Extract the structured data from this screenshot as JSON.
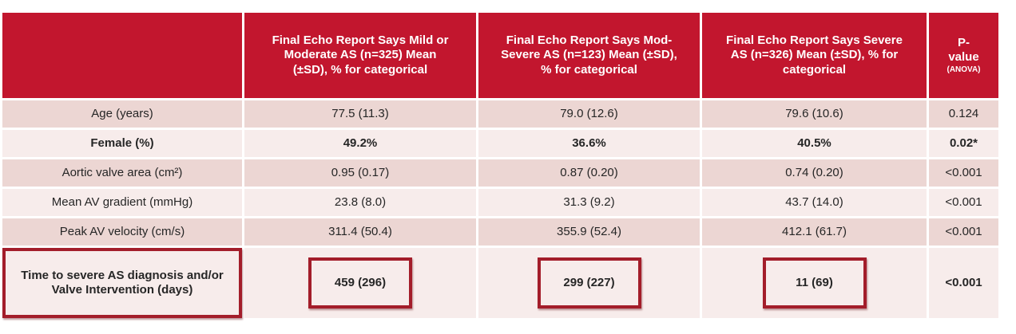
{
  "colors": {
    "header_red": "#c2162e",
    "row_pink": "#ecd6d3",
    "row_light": "#f7eceb",
    "box_red": "#a31d2a",
    "text_dark": "#262626",
    "header_text": "#ffffff",
    "page_bg": "#ffffff"
  },
  "table": {
    "header": {
      "corner": "",
      "groups": [
        "Final Echo Report Says Mild or Moderate AS (n=325) Mean (±SD), % for categorical",
        "Final Echo Report Says Mod-Severe AS (n=123) Mean (±SD), % for categorical",
        "Final Echo Report Says Severe AS (n=326) Mean (±SD), % for categorical"
      ],
      "p_value": "P-value",
      "p_value_sub": "(ANOVA)"
    },
    "rows": [
      {
        "label": "Age (years)",
        "values": [
          "77.5 (11.3)",
          "79.0 (12.6)",
          "79.6 (10.6)"
        ],
        "p": "0.124"
      },
      {
        "label": "Female (%)",
        "values": [
          "49.2%",
          "36.6%",
          "40.5%"
        ],
        "p": "0.02*"
      },
      {
        "label": "Aortic valve area (cm²)",
        "values": [
          "0.95 (0.17)",
          "0.87 (0.20)",
          "0.74 (0.20)"
        ],
        "p": "<0.001"
      },
      {
        "label": "Mean AV gradient (mmHg)",
        "values": [
          "23.8 (8.0)",
          "31.3 (9.2)",
          "43.7 (14.0)"
        ],
        "p": "<0.001"
      },
      {
        "label": "Peak AV velocity (cm/s)",
        "values": [
          "311.4 (50.4)",
          "355.9 (52.4)",
          "412.1 (61.7)"
        ],
        "p": "<0.001"
      },
      {
        "label": "Time to severe AS diagnosis and/or Valve Intervention (days)",
        "values": [
          "459 (296)",
          "299 (227)",
          "11 (69)"
        ],
        "p": "<0.001"
      }
    ]
  }
}
